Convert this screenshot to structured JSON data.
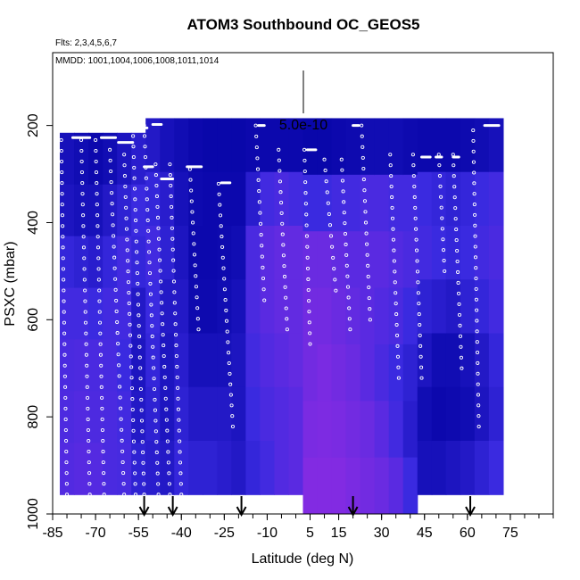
{
  "chart_data": {
    "type": "heatmap",
    "title": "ATOM3 Southbound OC_GEOS5",
    "subtitle_flights": "Flts: 2,3,4,5,6,7",
    "subtitle_dates": "MMDD: 1001,1004,1006,1008,1011,1014",
    "xlabel": "Latitude (deg N)",
    "ylabel": "PSXC (mbar)",
    "scale_label": "5.0e-10",
    "xlim": [
      -85,
      90
    ],
    "ylim": [
      1000,
      50
    ],
    "y_reversed": true,
    "x_ticks": [
      -85,
      -70,
      -55,
      -40,
      -25,
      -10,
      5,
      15,
      30,
      45,
      60,
      75
    ],
    "y_ticks": [
      200,
      400,
      600,
      800,
      1000
    ],
    "colors": {
      "low": "#0000a0",
      "mid": "#3a2ae0",
      "high": "#8a2be2"
    },
    "surface_markers_lat": [
      -53,
      -43,
      -19,
      20,
      61
    ],
    "columns": [
      {
        "lat": -80,
        "top": 215,
        "bottom": 960,
        "values": [
          0.2,
          0.25,
          0.45,
          0.55,
          0.6,
          0.62,
          0.65
        ]
      },
      {
        "lat": -75,
        "top": 215,
        "bottom": 960,
        "values": [
          0.15,
          0.2,
          0.4,
          0.55,
          0.62,
          0.65,
          0.68
        ]
      },
      {
        "lat": -70,
        "top": 215,
        "bottom": 960,
        "values": [
          0.1,
          0.2,
          0.35,
          0.5,
          0.6,
          0.62,
          0.66
        ]
      },
      {
        "lat": -65,
        "top": 215,
        "bottom": 960,
        "values": [
          0.15,
          0.3,
          0.45,
          0.55,
          0.58,
          0.6,
          0.6
        ]
      },
      {
        "lat": -60,
        "top": 215,
        "bottom": 960,
        "values": [
          0.25,
          0.4,
          0.55,
          0.55,
          0.5,
          0.55,
          0.58
        ]
      },
      {
        "lat": -55,
        "top": 215,
        "bottom": 960,
        "values": [
          0.35,
          0.5,
          0.45,
          0.3,
          0.25,
          0.3,
          0.4
        ]
      },
      {
        "lat": -50,
        "top": 185,
        "bottom": 960,
        "values": [
          0.3,
          0.45,
          0.55,
          0.5,
          0.45,
          0.4,
          0.35
        ]
      },
      {
        "lat": -45,
        "top": 185,
        "bottom": 960,
        "values": [
          0.2,
          0.35,
          0.4,
          0.3,
          0.25,
          0.25,
          0.3
        ]
      },
      {
        "lat": -40,
        "top": 185,
        "bottom": 960,
        "values": [
          0.15,
          0.2,
          0.25,
          0.3,
          0.35,
          0.4,
          0.45
        ]
      },
      {
        "lat": -35,
        "top": 185,
        "bottom": 960,
        "values": [
          0.1,
          0.12,
          0.1,
          0.12,
          0.2,
          0.3,
          0.4
        ]
      },
      {
        "lat": -30,
        "top": 185,
        "bottom": 960,
        "values": [
          0.08,
          0.1,
          0.1,
          0.12,
          0.2,
          0.3,
          0.4
        ]
      },
      {
        "lat": -25,
        "top": 185,
        "bottom": 960,
        "values": [
          0.08,
          0.1,
          0.12,
          0.15,
          0.2,
          0.3,
          0.35
        ]
      },
      {
        "lat": -20,
        "top": 185,
        "bottom": 960,
        "values": [
          0.08,
          0.1,
          0.15,
          0.2,
          0.25,
          0.25,
          0.3
        ]
      },
      {
        "lat": -15,
        "top": 185,
        "bottom": 960,
        "values": [
          0.1,
          0.35,
          0.6,
          0.6,
          0.55,
          0.5,
          0.45
        ]
      },
      {
        "lat": -10,
        "top": 185,
        "bottom": 960,
        "values": [
          0.1,
          0.55,
          0.7,
          0.7,
          0.65,
          0.6,
          0.55
        ]
      },
      {
        "lat": -5,
        "top": 185,
        "bottom": 960,
        "values": [
          0.1,
          0.6,
          0.75,
          0.75,
          0.7,
          0.65,
          0.65
        ]
      },
      {
        "lat": 0,
        "top": 185,
        "bottom": 960,
        "values": [
          0.1,
          0.55,
          0.75,
          0.75,
          0.75,
          0.7,
          0.7
        ]
      },
      {
        "lat": 5,
        "top": 185,
        "bottom": 1000,
        "values": [
          0.08,
          0.5,
          0.8,
          0.85,
          0.85,
          0.9,
          0.95
        ]
      },
      {
        "lat": 10,
        "top": 185,
        "bottom": 1000,
        "values": [
          0.08,
          0.5,
          0.8,
          0.85,
          0.9,
          0.92,
          0.95
        ]
      },
      {
        "lat": 15,
        "top": 185,
        "bottom": 1000,
        "values": [
          0.1,
          0.55,
          0.75,
          0.8,
          0.85,
          0.9,
          0.95
        ]
      },
      {
        "lat": 20,
        "top": 185,
        "bottom": 1000,
        "values": [
          0.12,
          0.55,
          0.7,
          0.75,
          0.8,
          0.85,
          0.9
        ]
      },
      {
        "lat": 25,
        "top": 185,
        "bottom": 1000,
        "values": [
          0.15,
          0.6,
          0.7,
          0.7,
          0.7,
          0.8,
          0.85
        ]
      },
      {
        "lat": 30,
        "top": 185,
        "bottom": 1000,
        "values": [
          0.15,
          0.6,
          0.7,
          0.65,
          0.6,
          0.7,
          0.8
        ]
      },
      {
        "lat": 35,
        "top": 185,
        "bottom": 1000,
        "values": [
          0.15,
          0.55,
          0.65,
          0.6,
          0.5,
          0.55,
          0.7
        ]
      },
      {
        "lat": 40,
        "top": 185,
        "bottom": 1000,
        "values": [
          0.12,
          0.55,
          0.6,
          0.5,
          0.4,
          0.35,
          0.5
        ]
      },
      {
        "lat": 45,
        "top": 185,
        "bottom": 960,
        "values": [
          0.1,
          0.5,
          0.55,
          0.4,
          0.25,
          0.15,
          0.2
        ]
      },
      {
        "lat": 50,
        "top": 185,
        "bottom": 960,
        "values": [
          0.1,
          0.45,
          0.5,
          0.35,
          0.15,
          0.1,
          0.2
        ]
      },
      {
        "lat": 55,
        "top": 185,
        "bottom": 960,
        "values": [
          0.1,
          0.4,
          0.45,
          0.3,
          0.15,
          0.12,
          0.25
        ]
      },
      {
        "lat": 60,
        "top": 185,
        "bottom": 960,
        "values": [
          0.12,
          0.45,
          0.5,
          0.4,
          0.2,
          0.15,
          0.3
        ]
      },
      {
        "lat": 65,
        "top": 185,
        "bottom": 960,
        "values": [
          0.15,
          0.5,
          0.55,
          0.45,
          0.3,
          0.25,
          0.4
        ]
      },
      {
        "lat": 70,
        "top": 185,
        "bottom": 960,
        "values": [
          0.2,
          0.55,
          0.6,
          0.55,
          0.45,
          0.4,
          0.5
        ]
      }
    ],
    "flight_tracks": [
      {
        "lat_top": -82,
        "lat_bottom": -80,
        "p_top": 230,
        "p_bottom": 960
      },
      {
        "lat_top": -75,
        "lat_bottom": -72,
        "p_top": 230,
        "p_bottom": 960
      },
      {
        "lat_top": -70,
        "lat_bottom": -67,
        "p_top": 230,
        "p_bottom": 960
      },
      {
        "lat_top": -65,
        "lat_bottom": -60,
        "p_top": 250,
        "p_bottom": 960
      },
      {
        "lat_top": -60,
        "lat_bottom": -56,
        "p_top": 260,
        "p_bottom": 960
      },
      {
        "lat_top": -57,
        "lat_bottom": -53,
        "p_top": 200,
        "p_bottom": 960
      },
      {
        "lat_top": -53,
        "lat_bottom": -48,
        "p_top": 200,
        "p_bottom": 960
      },
      {
        "lat_top": -49,
        "lat_bottom": -44,
        "p_top": 280,
        "p_bottom": 960
      },
      {
        "lat_top": -44,
        "lat_bottom": -40,
        "p_top": 280,
        "p_bottom": 960
      },
      {
        "lat_top": -37,
        "lat_bottom": -34,
        "p_top": 290,
        "p_bottom": 620
      },
      {
        "lat_top": -27,
        "lat_bottom": -22,
        "p_top": 320,
        "p_bottom": 820
      },
      {
        "lat_top": -14,
        "lat_bottom": -11,
        "p_top": 200,
        "p_bottom": 560
      },
      {
        "lat_top": -6,
        "lat_bottom": -3,
        "p_top": 250,
        "p_bottom": 620
      },
      {
        "lat_top": 3,
        "lat_bottom": 5,
        "p_top": 250,
        "p_bottom": 650
      },
      {
        "lat_top": 10,
        "lat_bottom": 14,
        "p_top": 270,
        "p_bottom": 540
      },
      {
        "lat_top": 16,
        "lat_bottom": 19,
        "p_top": 270,
        "p_bottom": 620
      },
      {
        "lat_top": 23,
        "lat_bottom": 26,
        "p_top": 200,
        "p_bottom": 600
      },
      {
        "lat_top": 33,
        "lat_bottom": 36,
        "p_top": 260,
        "p_bottom": 720
      },
      {
        "lat_top": 41,
        "lat_bottom": 44,
        "p_top": 260,
        "p_bottom": 720
      },
      {
        "lat_top": 50,
        "lat_bottom": 52,
        "p_top": 260,
        "p_bottom": 500
      },
      {
        "lat_top": 55,
        "lat_bottom": 58,
        "p_top": 260,
        "p_bottom": 700
      },
      {
        "lat_top": 62,
        "lat_bottom": 64,
        "p_top": 210,
        "p_bottom": 820
      }
    ],
    "level_flight_segments": [
      {
        "lat1": -78,
        "lat2": -72,
        "p": 225
      },
      {
        "lat1": -68,
        "lat2": -63,
        "p": 225
      },
      {
        "lat1": -62,
        "lat2": -57,
        "p": 235
      },
      {
        "lat1": -56,
        "lat2": -52,
        "p": 205
      },
      {
        "lat1": -50,
        "lat2": -47,
        "p": 198
      },
      {
        "lat1": -53,
        "lat2": -50,
        "p": 285
      },
      {
        "lat1": -47,
        "lat2": -43,
        "p": 310
      },
      {
        "lat1": -38,
        "lat2": -33,
        "p": 285
      },
      {
        "lat1": -26,
        "lat2": -23,
        "p": 318
      },
      {
        "lat1": -13,
        "lat2": -11,
        "p": 200
      },
      {
        "lat1": 4,
        "lat2": 7,
        "p": 250
      },
      {
        "lat1": 20,
        "lat2": 22,
        "p": 200
      },
      {
        "lat1": 44,
        "lat2": 47,
        "p": 265
      },
      {
        "lat1": 55,
        "lat2": 57,
        "p": 265
      },
      {
        "lat1": 66,
        "lat2": 71,
        "p": 200
      },
      {
        "lat1": 49,
        "lat2": 51,
        "p": 265
      }
    ]
  }
}
